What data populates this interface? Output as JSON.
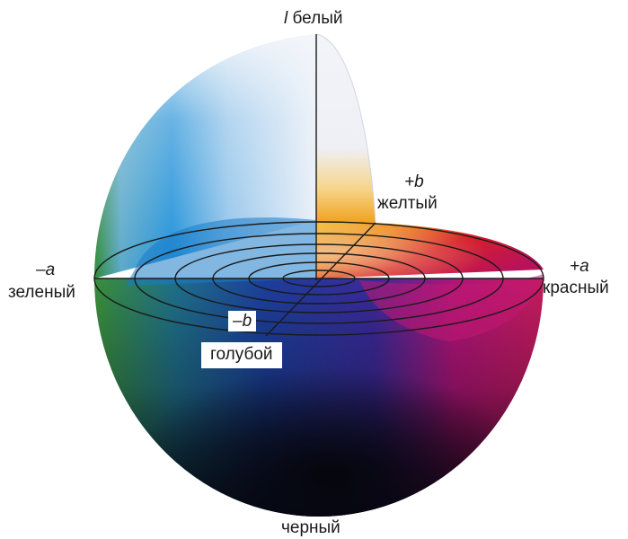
{
  "labels": {
    "l_axis_letter": "l",
    "l_axis_word": "белый",
    "plus_b": "+b",
    "yellow": "желтый",
    "minus_a": "–a",
    "green": "зеленый",
    "plus_a": "+a",
    "red": "красный",
    "minus_b": "–b",
    "blue_cyan": "голубой",
    "black": "черный"
  },
  "colors": {
    "white_top": "#eef2f8",
    "cyan": "#1a8fd6",
    "blue": "#1c3f9c",
    "green": "#3d8a3a",
    "yellow": "#f2b02a",
    "orange": "#ee7a1e",
    "red": "#d81a2a",
    "magenta": "#c0167a",
    "black": "#0a0a12",
    "rings": "#1a1a1a"
  }
}
